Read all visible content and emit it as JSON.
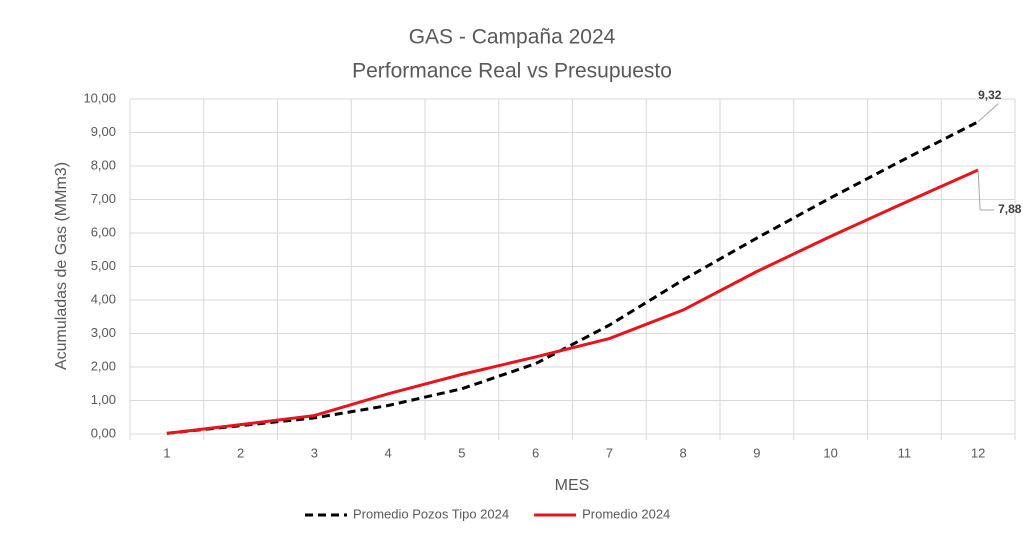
{
  "chart_data": {
    "type": "line",
    "title": "GAS - Campaña 2024",
    "subtitle": "Performance Real vs Presupuesto",
    "x_label": "MES",
    "y_label": "Acumuladas de Gas (MMm3)",
    "categories": [
      "1",
      "2",
      "3",
      "4",
      "5",
      "6",
      "7",
      "8",
      "9",
      "10",
      "11",
      "12"
    ],
    "series": [
      {
        "name": "Promedio Pozos Tipo 2024",
        "color": "#000000",
        "dashed": true,
        "values": [
          0.02,
          0.25,
          0.48,
          0.85,
          1.35,
          2.1,
          3.25,
          4.6,
          5.85,
          7.05,
          8.2,
          9.32
        ],
        "value_labels": [
          null,
          null,
          null,
          null,
          null,
          null,
          null,
          null,
          null,
          null,
          null,
          "9,32"
        ]
      },
      {
        "name": "Promedio 2024",
        "color": "#e8141b",
        "dashed": false,
        "values": [
          0.02,
          0.28,
          0.55,
          1.2,
          1.78,
          2.3,
          2.85,
          3.7,
          4.85,
          5.9,
          6.9,
          7.88
        ],
        "value_labels": [
          null,
          null,
          null,
          null,
          null,
          null,
          null,
          null,
          null,
          null,
          null,
          "7,88"
        ]
      }
    ],
    "ylim": [
      0,
      10
    ],
    "yticks": [
      {
        "value": 0,
        "label": "0,00"
      },
      {
        "value": 1,
        "label": "1,00"
      },
      {
        "value": 2,
        "label": "2,00"
      },
      {
        "value": 3,
        "label": "3,00"
      },
      {
        "value": 4,
        "label": "4,00"
      },
      {
        "value": 5,
        "label": "5,00"
      },
      {
        "value": 6,
        "label": "6,00"
      },
      {
        "value": 7,
        "label": "7,00"
      },
      {
        "value": 8,
        "label": "8,00"
      },
      {
        "value": 9,
        "label": "9,00"
      },
      {
        "value": 10,
        "label": "10,00"
      }
    ],
    "grid": true,
    "legend": "bottom"
  }
}
